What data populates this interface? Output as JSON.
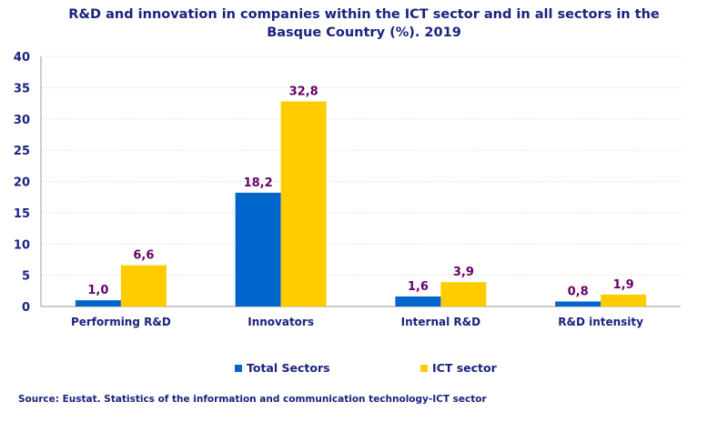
{
  "chart_data": {
    "type": "bar",
    "title_line1": "R&D and innovation in companies within the ICT sector and in all sectors in the",
    "title_line2": "Basque Country (%). 2019",
    "categories": [
      "Performing R&D",
      "Innovators",
      "Internal R&D",
      "R&D intensity"
    ],
    "series": [
      {
        "name": "Total Sectors",
        "color": "#0066cc",
        "values": [
          1.0,
          18.2,
          1.6,
          0.8
        ],
        "labels": [
          "1,0",
          "18,2",
          "1,6",
          "0,8"
        ]
      },
      {
        "name": "ICT sector",
        "color": "#ffcc00",
        "values": [
          6.6,
          32.8,
          3.9,
          1.9
        ],
        "labels": [
          "6,6",
          "32,8",
          "3,9",
          "1,9"
        ]
      }
    ],
    "ylim": [
      0,
      40
    ],
    "yticks": [
      0,
      5,
      10,
      15,
      20,
      25,
      30,
      35,
      40
    ],
    "grid": true,
    "legend_position": "bottom",
    "data_label_color": "#660066",
    "axis_text_color": "#1a237e"
  },
  "source": "Source: Eustat. Statistics of the information and communication technology-ICT sector"
}
